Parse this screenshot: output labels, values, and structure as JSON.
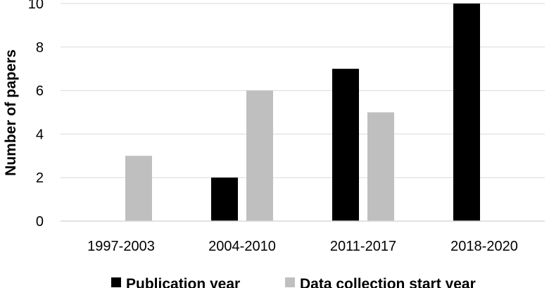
{
  "chart_data": {
    "type": "bar",
    "categories": [
      "1997-2003",
      "2004-2010",
      "2011-2017",
      "2018-2020"
    ],
    "series": [
      {
        "name": "Publication year",
        "values": [
          0,
          2,
          7,
          10
        ],
        "color": "#000000"
      },
      {
        "name": "Data collection start year",
        "values": [
          3,
          6,
          5,
          0
        ],
        "color": "#bfbfbf"
      }
    ],
    "title": "",
    "xlabel": "",
    "ylabel": "Number of papers",
    "ylim": [
      0,
      10
    ],
    "yticks": [
      0,
      2,
      4,
      6,
      8,
      10
    ],
    "grid": true,
    "gridline_color": "#d9d9d9",
    "legend_position": "bottom"
  }
}
